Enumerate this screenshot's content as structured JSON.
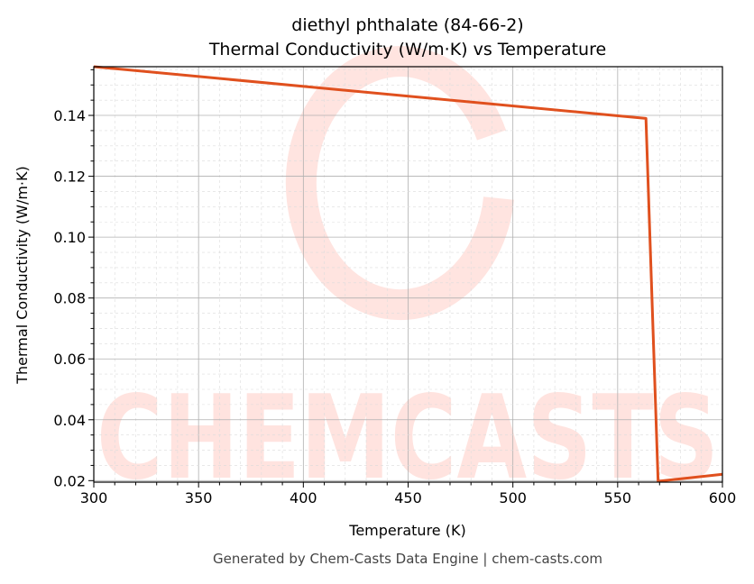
{
  "chart_data": {
    "type": "line",
    "title": "diethyl phthalate (84-66-2)",
    "subtitle": "Thermal Conductivity (W/m·K) vs Temperature",
    "xlabel": "Temperature (K)",
    "ylabel": "Thermal Conductivity (W/m·K)",
    "xlim": [
      300,
      600
    ],
    "ylim": [
      0.0195,
      0.156
    ],
    "xticks": [
      "300",
      "350",
      "400",
      "450",
      "500",
      "550",
      "600"
    ],
    "yticks": [
      "0.02",
      "0.04",
      "0.06",
      "0.08",
      "0.10",
      "0.12",
      "0.14"
    ],
    "grid": true,
    "series": [
      {
        "x": [
          300,
          563.5,
          569.3,
          600
        ],
        "y": [
          0.156,
          0.139,
          0.0198,
          0.0221
        ],
        "color": "#e0501e"
      }
    ]
  },
  "footer": "Generated by Chem-Casts Data Engine | chem-casts.com",
  "watermark": "CHEMCASTS"
}
